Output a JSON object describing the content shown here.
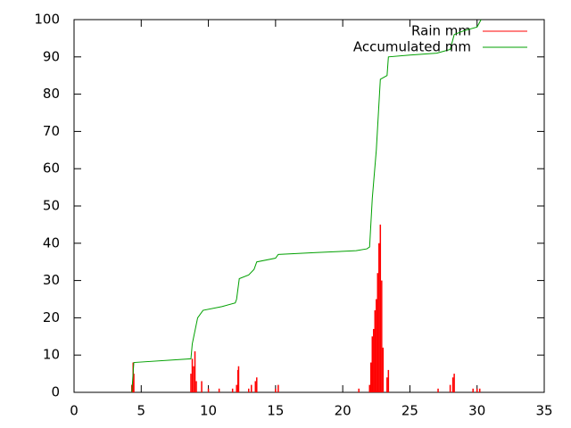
{
  "chart_data": {
    "type": "line",
    "legend": "top-right",
    "xlim": [
      0,
      35
    ],
    "xticks": [
      0,
      5,
      10,
      15,
      20,
      25,
      30,
      35
    ],
    "ylim": [
      0,
      100
    ],
    "yticks": [
      0,
      10,
      20,
      30,
      40,
      50,
      60,
      70,
      80,
      90,
      100
    ],
    "series": [
      {
        "name": "Rain mm",
        "color": "#ff0000",
        "style": "impulses",
        "x": [
          4.3,
          4.4,
          4.45,
          8.7,
          8.8,
          8.9,
          9.0,
          9.1,
          9.5,
          10.0,
          10.8,
          11.8,
          12.1,
          12.2,
          12.25,
          13.0,
          13.2,
          13.5,
          13.6,
          15.0,
          15.2,
          21.2,
          22.0,
          22.1,
          22.2,
          22.3,
          22.4,
          22.5,
          22.6,
          22.7,
          22.8,
          22.9,
          23.0,
          23.3,
          23.4,
          27.1,
          28.0,
          28.2,
          28.3,
          29.7,
          30.0,
          30.2
        ],
        "values": [
          2,
          8,
          5,
          5,
          9,
          7,
          11,
          3,
          3,
          1,
          1,
          1,
          2,
          6,
          7,
          1,
          2,
          3,
          4,
          1,
          2,
          1,
          2,
          8,
          15,
          17,
          22,
          25,
          32,
          40,
          45,
          30,
          12,
          4,
          6,
          1,
          2,
          4,
          5,
          1,
          1,
          1
        ]
      },
      {
        "name": "Accumulated mm",
        "color": "#00a000",
        "style": "lines",
        "x": [
          4.3,
          4.45,
          8.7,
          8.8,
          9.2,
          9.6,
          11.0,
          12.0,
          12.1,
          12.3,
          13.0,
          13.4,
          13.6,
          15.0,
          15.2,
          18.0,
          21.0,
          21.8,
          22.0,
          22.2,
          22.5,
          22.8,
          23.3,
          23.4,
          25.0,
          27.0,
          28.0,
          28.3,
          29.0,
          30.0,
          30.3
        ],
        "values": [
          0,
          8,
          9,
          13,
          20,
          22,
          23,
          24,
          25,
          30.5,
          31.5,
          33,
          35,
          36,
          37,
          37.5,
          38,
          38.5,
          39,
          52,
          65,
          84,
          85,
          90,
          90.5,
          91,
          92,
          96,
          97,
          98,
          100
        ]
      }
    ]
  }
}
